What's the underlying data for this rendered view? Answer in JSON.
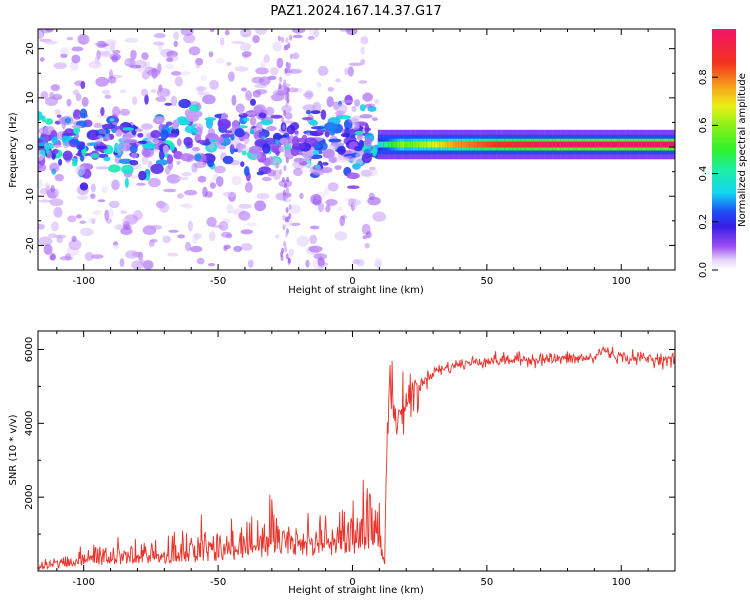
{
  "title": "PAZ1.2024.167.14.37.G17",
  "chart_data": [
    {
      "type": "heatmap",
      "xlabel": "Height of straight line (km)",
      "ylabel": "Frequency (Hz)",
      "xlim": [
        -117,
        120
      ],
      "ylim": [
        -25,
        24
      ],
      "xticks": [
        -100,
        -50,
        0,
        50,
        100
      ],
      "yticks": [
        -20,
        -10,
        0,
        10,
        20
      ],
      "colorbar": {
        "label": "Normalized spectral amplitude",
        "range": [
          0,
          1
        ],
        "ticks": [
          0.0,
          0.2,
          0.4,
          0.6,
          0.8
        ],
        "tick_labels": [
          "0.0",
          "0.2",
          "0.4",
          "0.6",
          "0.8"
        ]
      },
      "features": [
        {
          "x_range": [
            -117,
            10
          ],
          "freq_center": 0,
          "freq_spread_hz": 20,
          "peak_amplitude": 0.35,
          "description": "noisy scattered spectrum"
        },
        {
          "x_range": [
            10,
            120
          ],
          "freq_center": 0.5,
          "freq_width_hz": 2,
          "peak_amplitude": 1.0,
          "description": "narrow stable tone"
        }
      ]
    },
    {
      "type": "line",
      "xlabel": "Height of straight line (km)",
      "ylabel": "SNR (10 * v/v)",
      "xlim": [
        -117,
        120
      ],
      "ylim": [
        0,
        6500
      ],
      "xticks": [
        -100,
        -50,
        0,
        50,
        100
      ],
      "yticks": [
        2000,
        4000,
        6000
      ],
      "series_color": "#e8322a",
      "x": [
        -117,
        -100,
        -80,
        -60,
        -40,
        -30,
        -20,
        -10,
        0,
        10,
        12,
        13,
        14,
        16,
        20,
        30,
        40,
        50,
        60,
        70,
        80,
        90,
        93,
        100,
        110,
        120
      ],
      "y": [
        100,
        300,
        450,
        500,
        700,
        900,
        850,
        900,
        1000,
        1200,
        200,
        3800,
        5500,
        4000,
        4600,
        5400,
        5600,
        5700,
        5720,
        5740,
        5750,
        5760,
        6000,
        5780,
        5760,
        5700
      ]
    }
  ]
}
